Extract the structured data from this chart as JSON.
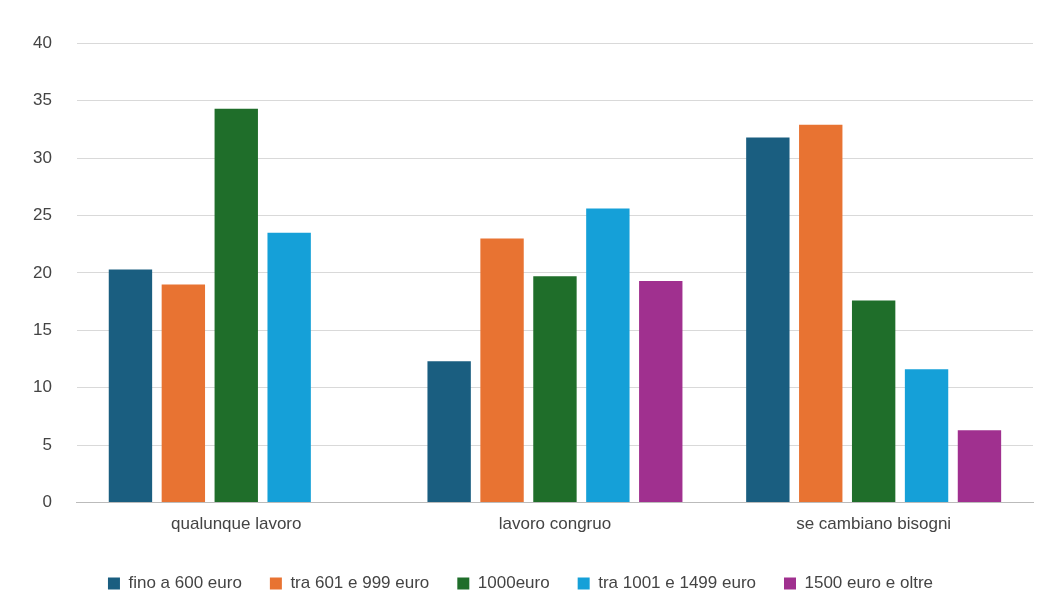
{
  "chart_data": {
    "type": "bar",
    "categories": [
      "qualunque lavoro",
      "lavoro congruo",
      "se cambiano bisogni"
    ],
    "series": [
      {
        "name": "fino a 600 euro",
        "color": "#1a5e80",
        "values": [
          20.3,
          12.3,
          31.8
        ]
      },
      {
        "name": "tra 601 e 999 euro",
        "color": "#e87332",
        "values": [
          19.0,
          23.0,
          32.9
        ]
      },
      {
        "name": "1000euro",
        "color": "#1f6e2a",
        "values": [
          34.3,
          19.7,
          17.6
        ]
      },
      {
        "name": "tra 1001 e 1499 euro",
        "color": "#15a0d8",
        "values": [
          23.5,
          25.6,
          11.6
        ]
      },
      {
        "name": "1500 euro e oltre",
        "color": "#a0308f",
        "values": [
          null,
          19.3,
          6.3
        ]
      }
    ],
    "ylim": [
      0,
      40
    ],
    "yticks": [
      0,
      5,
      10,
      15,
      20,
      25,
      30,
      35,
      40
    ],
    "grid": "y",
    "legend": "bottom"
  }
}
